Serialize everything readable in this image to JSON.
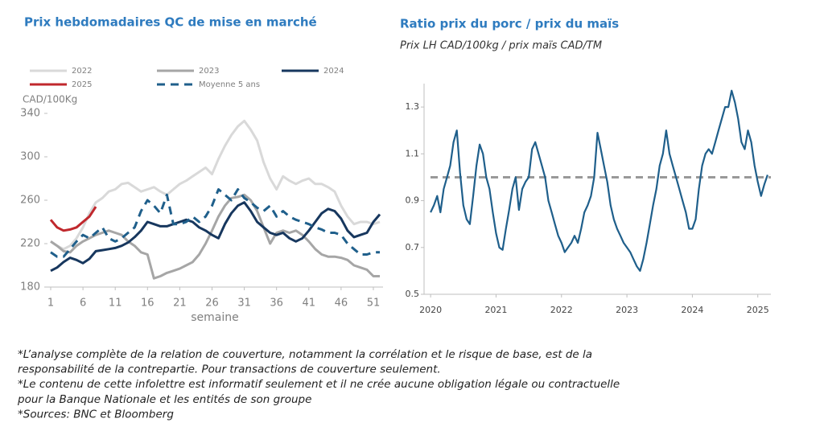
{
  "chart_data": [
    {
      "type": "line",
      "title": "Prix hebdomadaires QC de mise en marché",
      "y_label": "CAD/100Kg",
      "x_label": "semaine",
      "x": [
        1,
        2,
        3,
        4,
        5,
        6,
        7,
        8,
        9,
        10,
        11,
        12,
        13,
        14,
        15,
        16,
        17,
        18,
        19,
        20,
        21,
        22,
        23,
        24,
        25,
        26,
        27,
        28,
        29,
        30,
        31,
        32,
        33,
        34,
        35,
        36,
        37,
        38,
        39,
        40,
        41,
        42,
        43,
        44,
        45,
        46,
        47,
        48,
        49,
        50,
        51,
        52
      ],
      "series": [
        {
          "name": "2022",
          "color": "#d9d9d9",
          "dashed": false,
          "values": [
            222,
            218,
            215,
            218,
            225,
            235,
            248,
            258,
            262,
            268,
            270,
            275,
            276,
            272,
            268,
            270,
            272,
            268,
            265,
            270,
            275,
            278,
            282,
            286,
            290,
            284,
            298,
            310,
            320,
            328,
            333,
            325,
            315,
            295,
            280,
            270,
            282,
            278,
            275,
            278,
            280,
            275,
            275,
            272,
            268,
            255,
            245,
            238,
            240,
            240,
            238,
            240
          ]
        },
        {
          "name": "2023",
          "color": "#a6a6a6",
          "dashed": false,
          "values": [
            222,
            218,
            213,
            212,
            218,
            222,
            225,
            228,
            230,
            232,
            230,
            228,
            222,
            218,
            212,
            210,
            188,
            190,
            193,
            195,
            197,
            200,
            203,
            210,
            220,
            232,
            245,
            255,
            262,
            263,
            265,
            260,
            250,
            235,
            220,
            230,
            232,
            230,
            232,
            228,
            222,
            215,
            210,
            208,
            208,
            207,
            205,
            200,
            198,
            196,
            190,
            190
          ]
        },
        {
          "name": "2024",
          "color": "#17375e",
          "dashed": false,
          "values": [
            195,
            198,
            203,
            207,
            205,
            202,
            206,
            213,
            214,
            215,
            216,
            218,
            221,
            226,
            232,
            240,
            238,
            236,
            236,
            238,
            240,
            242,
            240,
            235,
            232,
            228,
            225,
            238,
            248,
            255,
            258,
            250,
            240,
            235,
            230,
            228,
            230,
            225,
            222,
            225,
            232,
            240,
            248,
            252,
            250,
            243,
            232,
            226,
            228,
            230,
            240,
            247
          ]
        },
        {
          "name": "2025",
          "color": "#c0282d",
          "dashed": false,
          "values": [
            242,
            235,
            232,
            233,
            235,
            240,
            245,
            254,
            null,
            null,
            null,
            null,
            null,
            null,
            null,
            null,
            null,
            null,
            null,
            null,
            null,
            null,
            null,
            null,
            null,
            null,
            null,
            null,
            null,
            null,
            null,
            null,
            null,
            null,
            null,
            null,
            null,
            null,
            null,
            null,
            null,
            null,
            null,
            null,
            null,
            null,
            null,
            null,
            null,
            null,
            null,
            null
          ]
        },
        {
          "name": "Moyenne 5 ans",
          "color": "#1f5f8b",
          "dashed": true,
          "values": [
            212,
            208,
            208,
            215,
            222,
            228,
            225,
            230,
            235,
            225,
            222,
            225,
            230,
            235,
            250,
            260,
            255,
            248,
            265,
            238,
            238,
            240,
            245,
            240,
            245,
            255,
            270,
            265,
            260,
            270,
            262,
            258,
            253,
            250,
            255,
            245,
            250,
            245,
            242,
            240,
            238,
            235,
            233,
            230,
            230,
            228,
            220,
            215,
            210,
            210,
            212,
            212
          ]
        }
      ],
      "xlim": [
        0.5,
        52.5
      ],
      "ylim": [
        180,
        340
      ],
      "xticks": [
        1,
        6,
        11,
        16,
        21,
        26,
        31,
        36,
        41,
        46,
        51
      ],
      "yticks": [
        180,
        220,
        260,
        300,
        340
      ],
      "legend": "top"
    },
    {
      "type": "line",
      "title": "Ratio prix du porc / prix du maïs",
      "subtitle": "Prix LH CAD/100kg / prix maïs CAD/TM",
      "x": [
        2020,
        2020.05,
        2020.1,
        2020.15,
        2020.2,
        2020.25,
        2020.3,
        2020.35,
        2020.4,
        2020.45,
        2020.5,
        2020.55,
        2020.6,
        2020.65,
        2020.7,
        2020.75,
        2020.8,
        2020.85,
        2020.9,
        2020.95,
        2021,
        2021.05,
        2021.1,
        2021.15,
        2021.2,
        2021.25,
        2021.3,
        2021.35,
        2021.4,
        2021.45,
        2021.5,
        2021.55,
        2021.6,
        2021.65,
        2021.7,
        2021.75,
        2021.8,
        2021.85,
        2021.9,
        2021.95,
        2022,
        2022.05,
        2022.1,
        2022.15,
        2022.2,
        2022.25,
        2022.3,
        2022.35,
        2022.4,
        2022.45,
        2022.5,
        2022.55,
        2022.6,
        2022.65,
        2022.7,
        2022.75,
        2022.8,
        2022.85,
        2022.9,
        2022.95,
        2023,
        2023.05,
        2023.1,
        2023.15,
        2023.2,
        2023.25,
        2023.3,
        2023.35,
        2023.4,
        2023.45,
        2023.5,
        2023.55,
        2023.6,
        2023.65,
        2023.7,
        2023.75,
        2023.8,
        2023.85,
        2023.9,
        2023.95,
        2024,
        2024.05,
        2024.1,
        2024.15,
        2024.2,
        2024.25,
        2024.3,
        2024.35,
        2024.4,
        2024.45,
        2024.5,
        2024.55,
        2024.6,
        2024.65,
        2024.7,
        2024.75,
        2024.8,
        2024.85,
        2024.9,
        2024.95,
        2025,
        2025.05,
        2025.1,
        2025.15
      ],
      "series": [
        {
          "name": null,
          "color": "#1f5f8b",
          "dashed": false,
          "values": [
            0.85,
            0.88,
            0.92,
            0.85,
            0.95,
            1.0,
            1.05,
            1.15,
            1.2,
            1.02,
            0.88,
            0.82,
            0.8,
            0.92,
            1.05,
            1.14,
            1.1,
            1.0,
            0.95,
            0.85,
            0.76,
            0.7,
            0.69,
            0.78,
            0.86,
            0.95,
            1.0,
            0.86,
            0.95,
            0.98,
            1.0,
            1.12,
            1.15,
            1.1,
            1.05,
            1.0,
            0.9,
            0.85,
            0.8,
            0.75,
            0.72,
            0.68,
            0.7,
            0.72,
            0.75,
            0.72,
            0.78,
            0.85,
            0.88,
            0.92,
            1.0,
            1.19,
            1.12,
            1.05,
            0.98,
            0.88,
            0.82,
            0.78,
            0.75,
            0.72,
            0.7,
            0.68,
            0.65,
            0.62,
            0.6,
            0.65,
            0.72,
            0.8,
            0.88,
            0.95,
            1.05,
            1.1,
            1.2,
            1.1,
            1.05,
            1.0,
            0.95,
            0.9,
            0.85,
            0.78,
            0.78,
            0.82,
            0.95,
            1.05,
            1.1,
            1.12,
            1.1,
            1.15,
            1.2,
            1.25,
            1.3,
            1.3,
            1.37,
            1.32,
            1.25,
            1.15,
            1.12,
            1.2,
            1.15,
            1.05,
            0.98,
            0.92,
            0.97,
            1.01
          ]
        }
      ],
      "reference_line": {
        "value": 1,
        "color": "#999999"
      },
      "xlim": [
        2019.9,
        2025.2
      ],
      "ylim": [
        0.5,
        1.4
      ],
      "xticks": [
        2020,
        2021,
        2022,
        2023,
        2024,
        2025
      ],
      "yticks": [
        0.5,
        0.7,
        0.9,
        1.1,
        1.3
      ]
    }
  ],
  "footnotes": [
    "*L’analyse complète de la relation de couverture, notamment la corrélation et le risque de base, est de la",
    "responsabilité de la contrepartie. Pour transactions de couverture seulement.",
    "*Le contenu de cette infolettre est informatif seulement et il ne crée aucune obligation légale ou contractuelle",
    "pour la Banque Nationale et les entités de son groupe",
    "*Sources: BNC et Bloomberg"
  ]
}
